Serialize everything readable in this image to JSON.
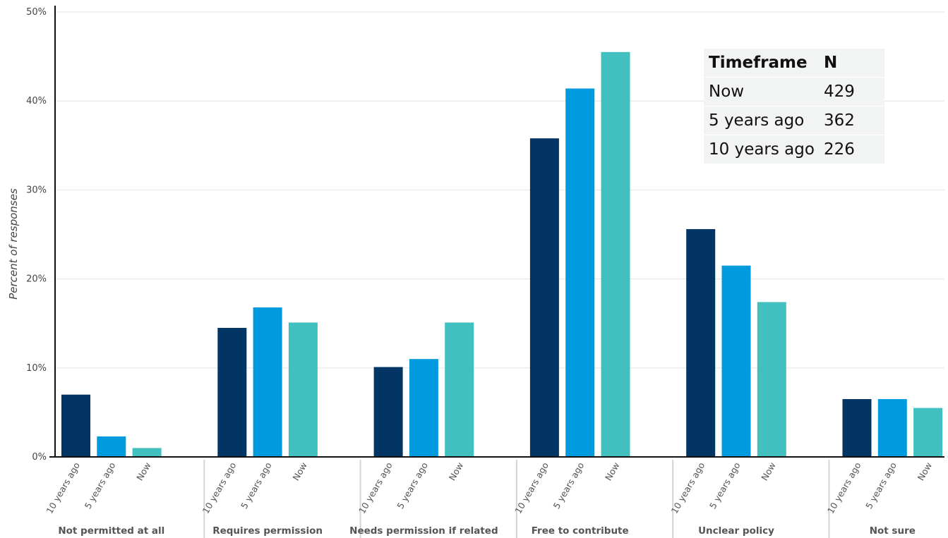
{
  "chart_data": {
    "type": "bar",
    "categories": [
      "Not permitted at all",
      "Requires  permission",
      "Needs permission if related",
      "Free to contribute",
      "Unclear policy",
      "Not sure"
    ],
    "sub_categories": [
      "10 years ago",
      "5 years ago",
      "Now"
    ],
    "series": [
      {
        "key": "10 years ago",
        "color": "#033564",
        "values": [
          7.0,
          14.5,
          10.1,
          35.8,
          25.6,
          6.5
        ]
      },
      {
        "key": "5 years ago",
        "color": "#009ade",
        "values": [
          2.3,
          16.8,
          11.0,
          41.4,
          21.5,
          6.5
        ]
      },
      {
        "key": "Now",
        "color": "#42bfbf",
        "values": [
          1.0,
          15.1,
          15.1,
          45.5,
          17.4,
          5.5
        ]
      }
    ],
    "ylabel": "Percent of responses",
    "ylim": [
      0,
      50
    ],
    "yticks": [
      0,
      10,
      20,
      30,
      40,
      50
    ],
    "ytick_labels": [
      "0%",
      "10%",
      "20%",
      "30%",
      "40%",
      "50%"
    ],
    "grid": true
  },
  "table": {
    "header": [
      "Timeframe",
      "N"
    ],
    "rows": [
      [
        "Now",
        "429"
      ],
      [
        "5 years ago",
        "362"
      ],
      [
        "10 years ago",
        "226"
      ]
    ]
  }
}
